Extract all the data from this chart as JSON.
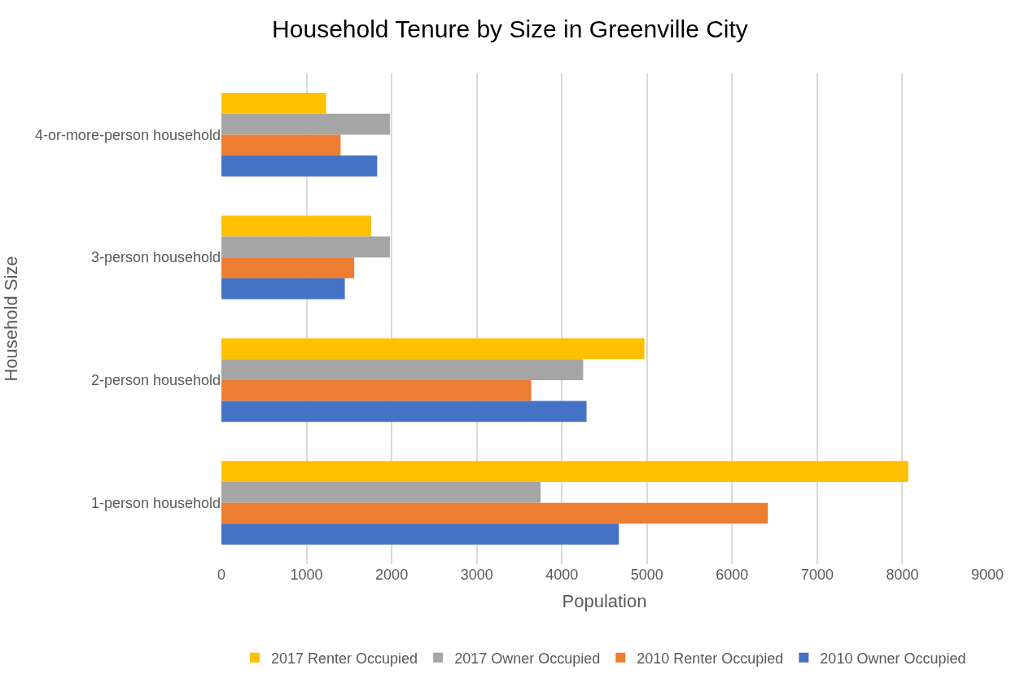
{
  "chart_data": {
    "type": "bar",
    "orientation": "horizontal",
    "title": "Household Tenure by Size in Greenville City",
    "xlabel": "Population",
    "ylabel": "Household Size",
    "categories": [
      "4-or-more-person household",
      "3-person household",
      "2-person household",
      "1-person household"
    ],
    "series": [
      {
        "name": "2017 Renter Occupied",
        "color": "#ffc000",
        "values": [
          1230,
          1760,
          4970,
          8070
        ]
      },
      {
        "name": "2017 Owner Occupied",
        "color": "#a5a5a5",
        "values": [
          1980,
          1980,
          4250,
          3750
        ]
      },
      {
        "name": "2010 Renter Occupied",
        "color": "#ed7d31",
        "values": [
          1400,
          1560,
          3640,
          6420
        ]
      },
      {
        "name": "2010 Owner Occupied",
        "color": "#4472c4",
        "values": [
          1830,
          1450,
          4290,
          4670
        ]
      }
    ],
    "xlim": [
      0,
      9000
    ],
    "xticks": [
      0,
      1000,
      2000,
      3000,
      4000,
      5000,
      6000,
      7000,
      8000,
      9000
    ],
    "grid": "x",
    "legend": "bottom"
  }
}
